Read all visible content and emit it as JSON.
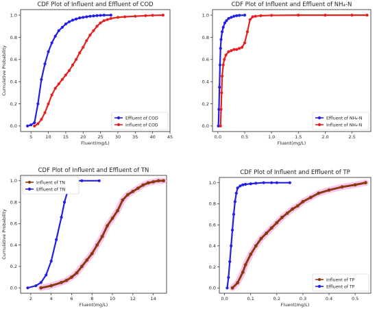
{
  "chart_data": [
    {
      "type": "line",
      "title": "CDF Plot of Influent and Effluent of COD",
      "xlabel": "Fluent(mg/L)",
      "ylabel": "Cumulative Probability",
      "xlim": [
        2,
        45
      ],
      "ylim": [
        -0.05,
        1.05
      ],
      "xticks": [
        5,
        10,
        15,
        20,
        25,
        30,
        35,
        40,
        45
      ],
      "yticks": [
        0.0,
        0.2,
        0.4,
        0.6,
        0.8,
        1.0
      ],
      "legend_position": "bottom-right",
      "series": [
        {
          "name": "Effluent of COD",
          "color": "#1f1fe6",
          "x": [
            4,
            5,
            6,
            7,
            8,
            9,
            10,
            11,
            12,
            13,
            14,
            15,
            16,
            17,
            18,
            19,
            20,
            21,
            22,
            23,
            24,
            25,
            26,
            28
          ],
          "y": [
            0.0,
            0.01,
            0.03,
            0.2,
            0.42,
            0.56,
            0.67,
            0.75,
            0.81,
            0.86,
            0.89,
            0.92,
            0.94,
            0.955,
            0.965,
            0.975,
            0.98,
            0.985,
            0.99,
            0.993,
            0.996,
            0.998,
            1.0,
            1.0
          ]
        },
        {
          "name": "Influent of COD",
          "color": "#e61f1f",
          "x": [
            6,
            7,
            8,
            9,
            10,
            11,
            12,
            13,
            14,
            15,
            16,
            17,
            18,
            19,
            20,
            21,
            22,
            23,
            24,
            25,
            26,
            27,
            28,
            30,
            32,
            35,
            38,
            40,
            43
          ],
          "y": [
            0.0,
            0.02,
            0.06,
            0.12,
            0.2,
            0.28,
            0.34,
            0.38,
            0.42,
            0.46,
            0.5,
            0.55,
            0.6,
            0.66,
            0.71,
            0.77,
            0.82,
            0.86,
            0.9,
            0.93,
            0.95,
            0.96,
            0.97,
            0.98,
            0.985,
            0.99,
            0.995,
            0.998,
            1.0
          ]
        }
      ]
    },
    {
      "type": "line",
      "title": "CDF Plot of Influent and Effluent of NH₄-N",
      "xlabel": "Fluent(mg/L)",
      "ylabel": "",
      "xlim": [
        -0.1,
        2.85
      ],
      "ylim": [
        -0.05,
        1.05
      ],
      "xticks": [
        0.0,
        0.5,
        1.0,
        1.5,
        2.0,
        2.5
      ],
      "yticks": [
        0.0,
        0.2,
        0.4,
        0.6,
        0.8,
        1.0
      ],
      "legend_position": "bottom-right",
      "series": [
        {
          "name": "Effluent of NH₄-N",
          "color": "#1f1fe6",
          "x": [
            0.01,
            0.02,
            0.03,
            0.04,
            0.05,
            0.06,
            0.08,
            0.1,
            0.13,
            0.16,
            0.2,
            0.25,
            0.3,
            0.35,
            0.4,
            0.5
          ],
          "y": [
            0.0,
            0.15,
            0.35,
            0.55,
            0.7,
            0.78,
            0.85,
            0.89,
            0.93,
            0.95,
            0.97,
            0.98,
            0.99,
            0.995,
            0.998,
            1.0
          ]
        },
        {
          "name": "Influent of NH₄-N",
          "color": "#e61f1f",
          "x": [
            0.05,
            0.06,
            0.07,
            0.08,
            0.1,
            0.12,
            0.15,
            0.2,
            0.25,
            0.3,
            0.35,
            0.4,
            0.45,
            0.5,
            0.55,
            0.6,
            0.65,
            0.7,
            0.8,
            1.0,
            1.5,
            2.0,
            2.5,
            2.78
          ],
          "y": [
            0.0,
            0.15,
            0.3,
            0.45,
            0.55,
            0.6,
            0.64,
            0.67,
            0.68,
            0.69,
            0.69,
            0.7,
            0.71,
            0.75,
            0.85,
            0.96,
            0.985,
            0.99,
            0.995,
            0.998,
            1.0,
            1.0,
            1.0,
            1.0
          ]
        }
      ]
    },
    {
      "type": "line",
      "title": "CDF Plot of Influent and Effluent of TN",
      "xlabel": "Fluent(mg/L)",
      "ylabel": "Cumulative Probability",
      "xlim": [
        1.0,
        15.3
      ],
      "ylim": [
        -0.05,
        1.05
      ],
      "xticks": [
        2,
        4,
        6,
        8,
        10,
        12,
        14
      ],
      "yticks": [
        0.0,
        0.2,
        0.4,
        0.6,
        0.8,
        1.0
      ],
      "legend_position": "top-left",
      "series": [
        {
          "name": "Influent of TN",
          "color": "#8b3a10",
          "x": [
            3,
            4,
            5,
            5.5,
            6,
            6.5,
            7,
            7.5,
            8,
            8.5,
            9,
            9.5,
            10,
            10.5,
            11,
            11.5,
            12,
            12.5,
            13,
            13.5,
            14,
            14.5,
            15
          ],
          "y": [
            0.0,
            0.02,
            0.05,
            0.07,
            0.1,
            0.14,
            0.2,
            0.26,
            0.32,
            0.4,
            0.48,
            0.58,
            0.65,
            0.72,
            0.82,
            0.87,
            0.9,
            0.93,
            0.96,
            0.98,
            0.99,
            1.0,
            1.0
          ]
        },
        {
          "name": "Effluent of TN",
          "color": "#1f1fe6",
          "x": [
            1.7,
            2.5,
            3.0,
            3.5,
            4.0,
            4.5,
            5.0,
            5.3,
            5.6,
            5.9,
            6.2,
            6.5,
            7.0,
            8.7
          ],
          "y": [
            0.0,
            0.02,
            0.05,
            0.12,
            0.25,
            0.45,
            0.66,
            0.8,
            0.9,
            0.96,
            0.99,
            1.0,
            1.0,
            1.0
          ]
        }
      ]
    },
    {
      "type": "line",
      "title": "CDF Plot of Influent and Effluent of TP",
      "xlabel": "Fluent(mg/L)",
      "ylabel": "",
      "xlim": [
        -0.02,
        0.56
      ],
      "ylim": [
        -0.05,
        1.05
      ],
      "xticks": [
        0.0,
        0.1,
        0.2,
        0.3,
        0.4,
        0.5
      ],
      "yticks": [
        0.0,
        0.2,
        0.4,
        0.6,
        0.8,
        1.0
      ],
      "legend_position": "bottom-right",
      "series": [
        {
          "name": "Influent of TP",
          "color": "#8b3a10",
          "x": [
            0.03,
            0.05,
            0.07,
            0.08,
            0.1,
            0.12,
            0.14,
            0.16,
            0.18,
            0.2,
            0.22,
            0.24,
            0.26,
            0.28,
            0.3,
            0.33,
            0.36,
            0.4,
            0.45,
            0.5,
            0.54
          ],
          "y": [
            0.0,
            0.05,
            0.15,
            0.22,
            0.32,
            0.4,
            0.47,
            0.52,
            0.57,
            0.62,
            0.67,
            0.71,
            0.75,
            0.78,
            0.82,
            0.86,
            0.9,
            0.93,
            0.96,
            0.98,
            1.0
          ]
        },
        {
          "name": "Effluent of TP",
          "color": "#1f1fe6",
          "x": [
            0.01,
            0.015,
            0.02,
            0.025,
            0.03,
            0.035,
            0.04,
            0.045,
            0.05,
            0.06,
            0.07,
            0.08,
            0.1,
            0.12,
            0.15,
            0.18,
            0.2,
            0.25
          ],
          "y": [
            0.0,
            0.1,
            0.25,
            0.4,
            0.55,
            0.7,
            0.82,
            0.9,
            0.95,
            0.97,
            0.98,
            0.985,
            0.99,
            0.995,
            1.0,
            1.0,
            1.0,
            1.0
          ]
        }
      ]
    }
  ]
}
